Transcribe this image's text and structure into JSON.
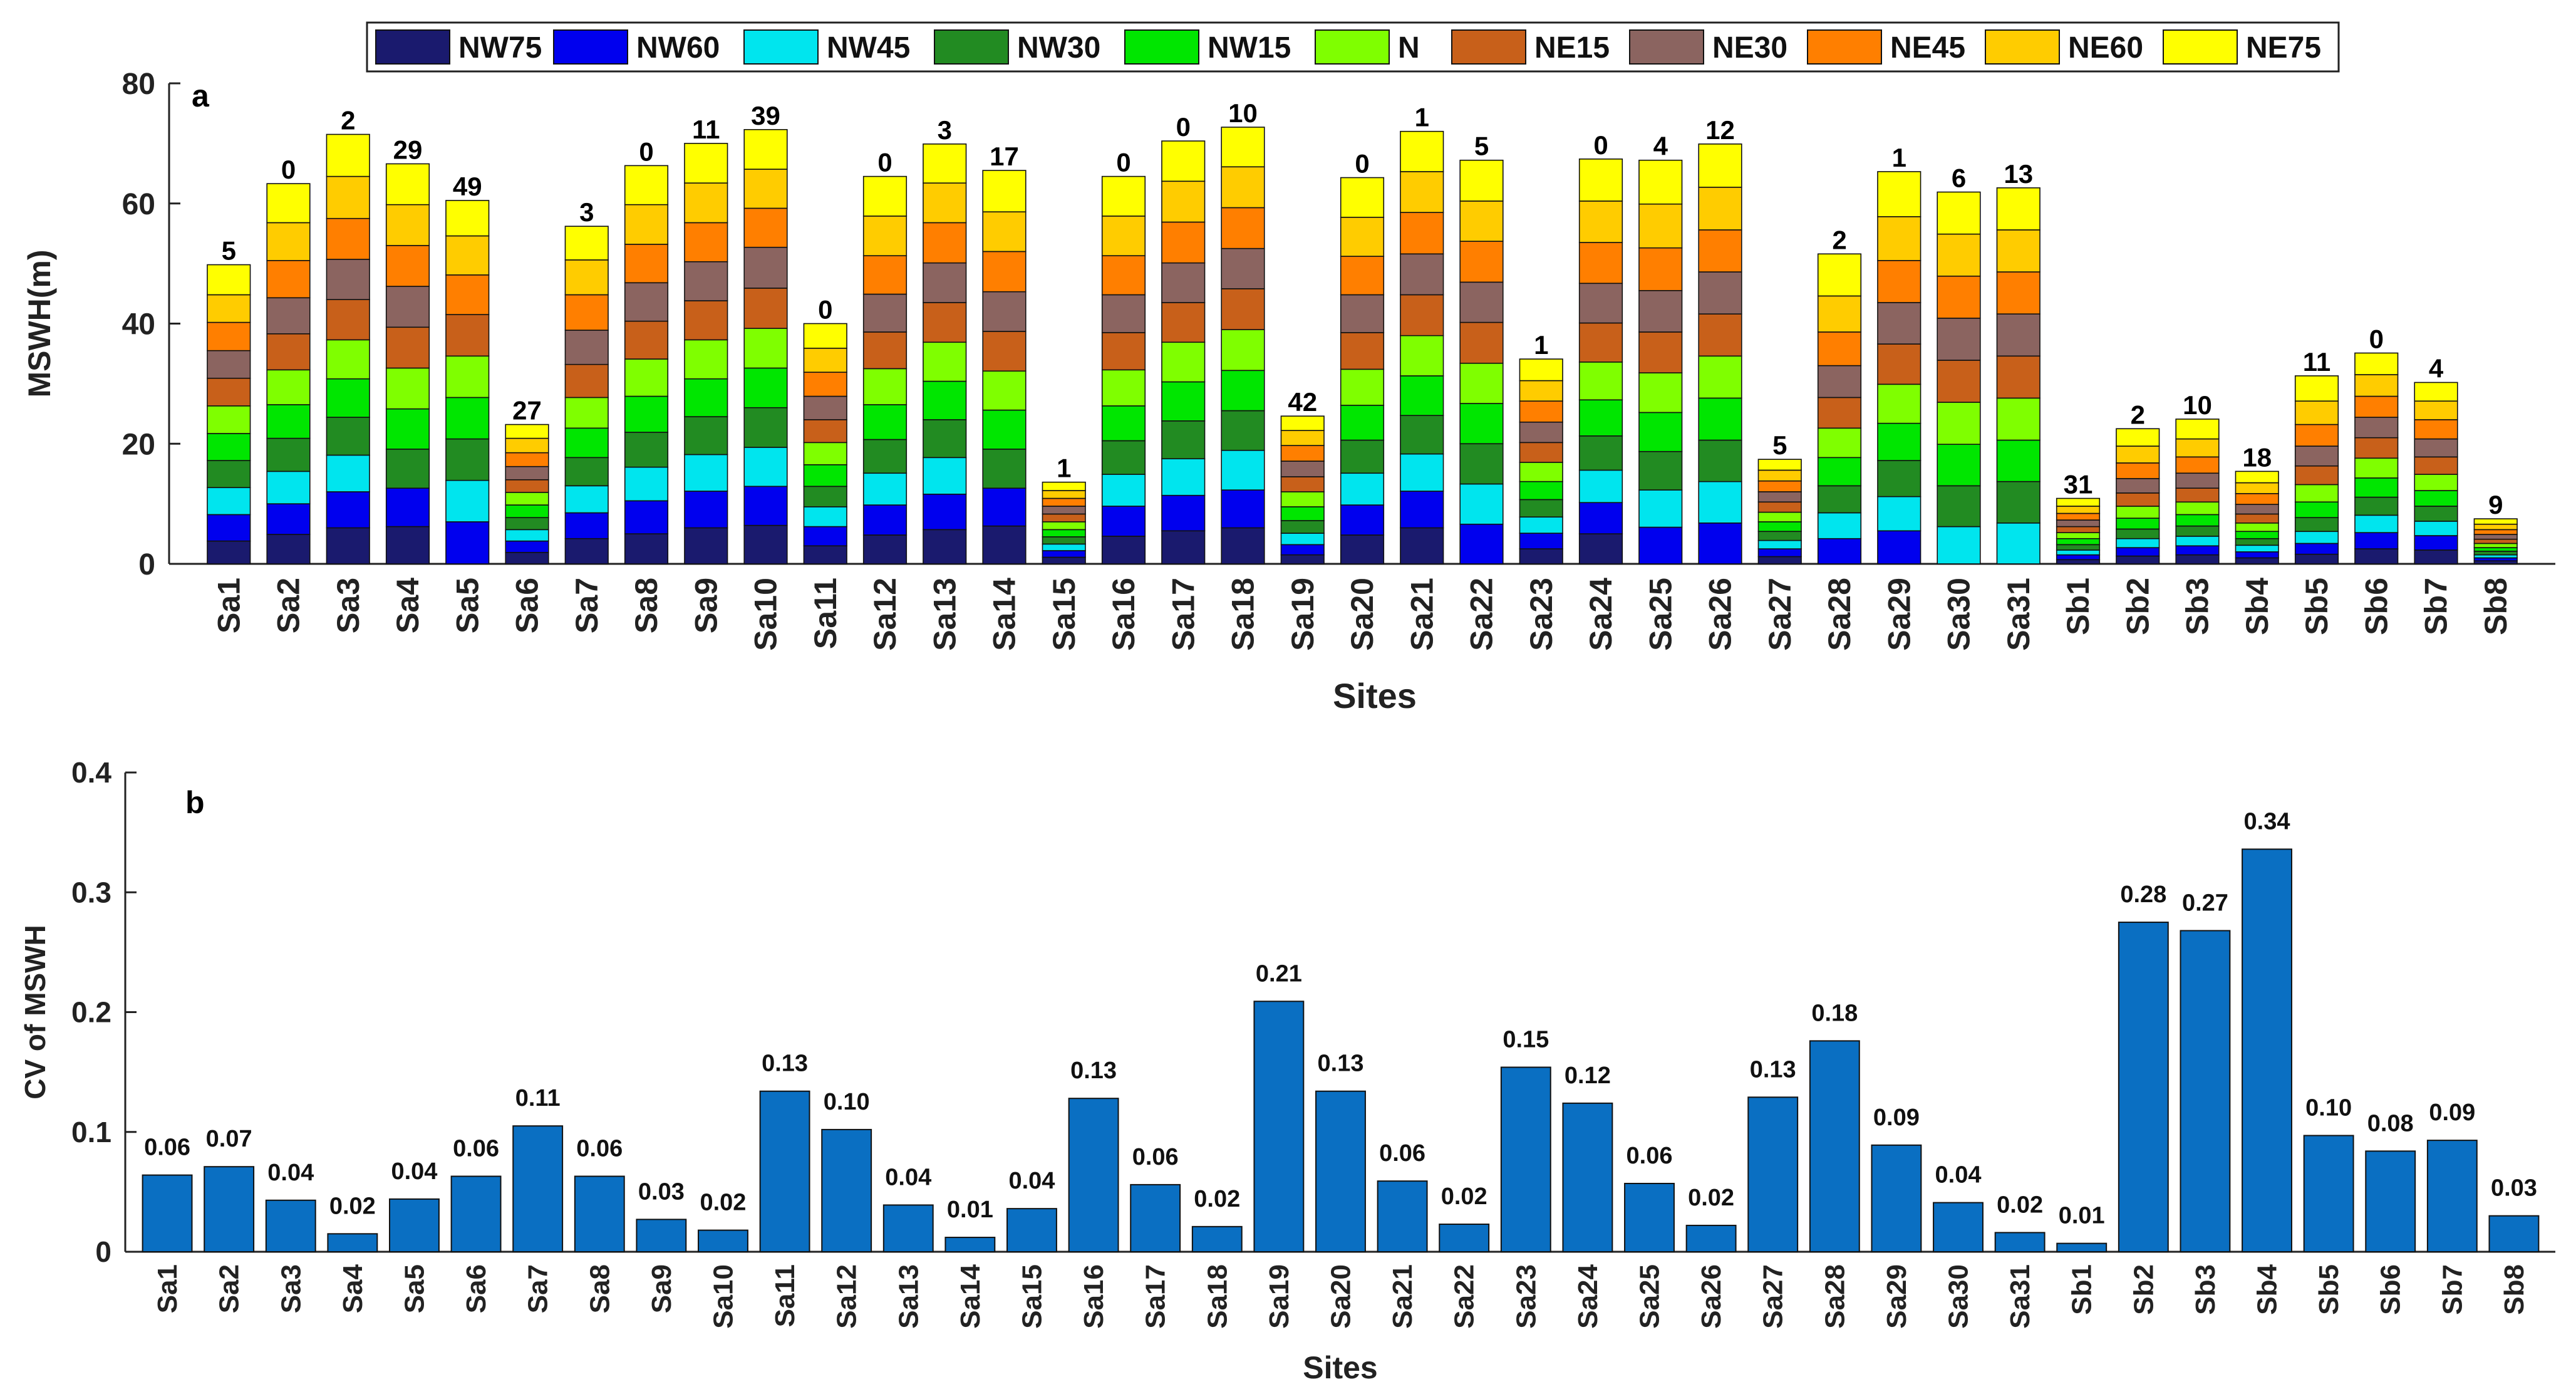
{
  "chart_data": [
    {
      "panel": "a",
      "type": "bar",
      "stacked": true,
      "panel_label": "a",
      "title": "",
      "xlabel": "Sites",
      "ylabel": "MSWH(m)",
      "ylim": [
        0,
        80
      ],
      "yticks": [
        0,
        20,
        40,
        60,
        80
      ],
      "legend_position": "top-center",
      "categories": [
        "Sa1",
        "Sa2",
        "Sa3",
        "Sa4",
        "Sa5",
        "Sa6",
        "Sa7",
        "Sa8",
        "Sa9",
        "Sa10",
        "Sa11",
        "Sa12",
        "Sa13",
        "Sa14",
        "Sa15",
        "Sa16",
        "Sa17",
        "Sa18",
        "Sa19",
        "Sa20",
        "Sa21",
        "Sa22",
        "Sa23",
        "Sa24",
        "Sa25",
        "Sa26",
        "Sa27",
        "Sa28",
        "Sa29",
        "Sa30",
        "Sa31",
        "Sb1",
        "Sb2",
        "Sb3",
        "Sb4",
        "Sb5",
        "Sb6",
        "Sb7",
        "Sb8"
      ],
      "series": [
        {
          "name": "NW75",
          "color": "#1a1a6e"
        },
        {
          "name": "NW60",
          "color": "#0000ee"
        },
        {
          "name": "NW45",
          "color": "#00e5ee"
        },
        {
          "name": "NW30",
          "color": "#228b22"
        },
        {
          "name": "NW15",
          "color": "#00e600"
        },
        {
          "name": "N",
          "color": "#7fff00"
        },
        {
          "name": "NE15",
          "color": "#c8601a"
        },
        {
          "name": "NE30",
          "color": "#8b6460"
        },
        {
          "name": "NE45",
          "color": "#ff7f00"
        },
        {
          "name": "NE60",
          "color": "#ffcc00"
        },
        {
          "name": "NE75",
          "color": "#ffff00"
        }
      ],
      "series_names": [
        "NW75",
        "NW60",
        "NW45",
        "NW30",
        "NW15",
        "N",
        "NE15",
        "NE30",
        "NE45",
        "NE60",
        "NE75"
      ],
      "stacks": [
        [
          3.8,
          4.4,
          4.5,
          4.5,
          4.5,
          4.6,
          4.6,
          4.6,
          4.7,
          4.6,
          5.0
        ],
        [
          4.9,
          5.1,
          5.4,
          5.5,
          5.6,
          5.8,
          6.0,
          6.0,
          6.2,
          6.3,
          6.5
        ],
        [
          6.0,
          6.0,
          6.1,
          6.3,
          6.4,
          6.5,
          6.7,
          6.7,
          6.8,
          7.0,
          7.0
        ],
        [
          6.2,
          6.4,
          0,
          6.5,
          6.7,
          6.8,
          6.8,
          6.8,
          6.8,
          6.8,
          6.8
        ],
        [
          0,
          7.0,
          6.9,
          6.9,
          6.9,
          6.9,
          6.9,
          0,
          6.6,
          6.5,
          5.9
        ],
        [
          1.9,
          1.9,
          1.9,
          2.0,
          2.1,
          2.1,
          2.1,
          2.2,
          2.3,
          2.4,
          2.3
        ],
        [
          4.2,
          4.3,
          4.5,
          4.7,
          4.9,
          5.1,
          5.5,
          5.7,
          5.9,
          5.8,
          5.6
        ],
        [
          5.0,
          5.5,
          5.6,
          5.8,
          6.0,
          6.2,
          6.3,
          6.4,
          6.4,
          6.6,
          6.5
        ],
        [
          6.0,
          6.1,
          6.1,
          6.3,
          6.3,
          6.5,
          6.5,
          6.5,
          6.5,
          6.6,
          6.6
        ],
        [
          6.4,
          6.5,
          6.5,
          6.6,
          6.6,
          6.6,
          6.7,
          6.8,
          6.5,
          6.5,
          6.6
        ],
        [
          3.0,
          3.2,
          3.3,
          3.4,
          3.6,
          3.7,
          3.8,
          3.9,
          4.0,
          4.0,
          4.1
        ],
        [
          4.8,
          5.0,
          5.3,
          5.6,
          5.8,
          6.0,
          6.1,
          6.3,
          6.4,
          6.6,
          6.6
        ],
        [
          5.7,
          5.9,
          6.1,
          6.3,
          6.4,
          6.5,
          6.6,
          6.6,
          6.7,
          6.6,
          6.5
        ],
        [
          6.3,
          6.3,
          0,
          6.5,
          6.5,
          6.5,
          6.6,
          6.6,
          6.7,
          6.6,
          6.9
        ],
        [
          1.1,
          1.1,
          1.1,
          1.2,
          1.2,
          1.3,
          1.3,
          1.3,
          1.3,
          1.3,
          1.4
        ],
        [
          4.6,
          5.0,
          5.3,
          5.6,
          5.8,
          6.0,
          6.2,
          6.3,
          6.5,
          6.6,
          6.6
        ],
        [
          5.5,
          5.9,
          6.1,
          6.3,
          6.5,
          6.6,
          6.6,
          6.6,
          6.8,
          6.8,
          6.7
        ],
        [
          6.0,
          6.3,
          6.6,
          6.6,
          6.7,
          6.8,
          6.8,
          6.7,
          6.8,
          6.8,
          6.6
        ],
        [
          1.5,
          1.7,
          1.9,
          2.1,
          2.3,
          2.5,
          2.5,
          2.6,
          2.6,
          2.5,
          2.4
        ],
        [
          4.8,
          5.0,
          5.3,
          5.5,
          5.8,
          6.0,
          6.1,
          6.3,
          6.4,
          6.5,
          6.6
        ],
        [
          6.0,
          6.1,
          6.2,
          6.4,
          6.6,
          6.7,
          6.8,
          6.8,
          6.9,
          6.8,
          6.7
        ],
        [
          0,
          6.6,
          6.7,
          6.7,
          6.7,
          6.7,
          6.8,
          6.7,
          6.8,
          6.7,
          6.8
        ],
        [
          2.5,
          2.6,
          2.7,
          2.9,
          3.0,
          3.2,
          3.3,
          3.4,
          3.5,
          3.4,
          3.6
        ],
        [
          5.0,
          5.2,
          5.4,
          5.7,
          6.0,
          6.3,
          6.5,
          6.6,
          6.8,
          6.9,
          7.0
        ],
        [
          0,
          6.1,
          6.2,
          6.4,
          6.5,
          6.6,
          6.8,
          6.9,
          7.1,
          7.3,
          7.3
        ],
        [
          0,
          6.8,
          6.9,
          6.9,
          7.0,
          7.0,
          7.0,
          7.0,
          7.0,
          7.1,
          7.2
        ],
        [
          1.2,
          1.3,
          1.4,
          1.5,
          1.6,
          1.6,
          1.7,
          1.7,
          1.8,
          1.8,
          1.8
        ],
        [
          0,
          4.2,
          4.3,
          4.5,
          4.7,
          4.9,
          5.1,
          5.3,
          5.6,
          6.0,
          7.0
        ],
        [
          0,
          5.5,
          5.7,
          6.0,
          6.2,
          6.5,
          6.7,
          6.9,
          7.0,
          7.3,
          7.5
        ],
        [
          0,
          0,
          6.2,
          6.8,
          6.9,
          7.0,
          7.0,
          7.0,
          7.0,
          7.0,
          7.0
        ],
        [
          0,
          0,
          6.8,
          6.9,
          6.9,
          7.0,
          7.0,
          7.0,
          7.0,
          7.0,
          7.0
        ],
        [
          0.7,
          0.8,
          0.8,
          0.9,
          1.0,
          1.0,
          1.0,
          1.1,
          1.1,
          1.2,
          1.3
        ],
        [
          1.3,
          1.4,
          1.5,
          1.6,
          1.8,
          2.0,
          2.2,
          2.4,
          2.6,
          2.8,
          2.9
        ],
        [
          1.5,
          1.5,
          1.6,
          1.7,
          1.9,
          2.1,
          2.3,
          2.5,
          2.7,
          3.0,
          3.3
        ],
        [
          1.0,
          1.0,
          1.1,
          1.1,
          1.2,
          1.4,
          1.5,
          1.6,
          1.8,
          1.8,
          1.9
        ],
        [
          1.6,
          1.8,
          2.0,
          2.3,
          2.6,
          2.9,
          3.1,
          3.3,
          3.6,
          3.9,
          4.2
        ],
        [
          2.5,
          2.7,
          2.9,
          3.0,
          3.2,
          3.3,
          3.4,
          3.4,
          3.5,
          3.6,
          3.6
        ],
        [
          2.3,
          2.4,
          2.4,
          2.5,
          2.6,
          2.7,
          2.9,
          3.0,
          3.2,
          3.1,
          3.1
        ],
        [
          0.5,
          0.5,
          0.5,
          0.6,
          0.6,
          0.7,
          0.7,
          0.8,
          0.8,
          0.9,
          0.9
        ]
      ],
      "top_labels": [
        "5",
        "0",
        "2",
        "29",
        "49",
        "27",
        "3",
        "0",
        "11",
        "39",
        "0",
        "0",
        "3",
        "17",
        "1",
        "0",
        "0",
        "10",
        "42",
        "0",
        "1",
        "5",
        "1",
        "0",
        "4",
        "12",
        "5",
        "2",
        "1",
        "6",
        "13",
        "31",
        "2",
        "10",
        "18",
        "11",
        "0",
        "4",
        "9"
      ]
    },
    {
      "panel": "b",
      "type": "bar",
      "panel_label": "b",
      "title": "",
      "xlabel": "Sites",
      "ylabel": "CV of MSWH",
      "ylim": [
        0,
        0.4
      ],
      "yticks": [
        0,
        0.1,
        0.2,
        0.3,
        0.4
      ],
      "ytick_labels": [
        "0",
        "0.1",
        "0.2",
        "0.3",
        "0.4"
      ],
      "bar_color": "#0a6fc2",
      "categories": [
        "Sa1",
        "Sa2",
        "Sa3",
        "Sa4",
        "Sa5",
        "Sa6",
        "Sa7",
        "Sa8",
        "Sa9",
        "Sa10",
        "Sa11",
        "Sa12",
        "Sa13",
        "Sa14",
        "Sa15",
        "Sa16",
        "Sa17",
        "Sa18",
        "Sa19",
        "Sa20",
        "Sa21",
        "Sa22",
        "Sa23",
        "Sa24",
        "Sa25",
        "Sa26",
        "Sa27",
        "Sa28",
        "Sa29",
        "Sa30",
        "Sa31",
        "Sb1",
        "Sb2",
        "Sb3",
        "Sb4",
        "Sb5",
        "Sb6",
        "Sb7",
        "Sb8"
      ],
      "values": [
        0.064,
        0.071,
        0.043,
        0.015,
        0.044,
        0.063,
        0.105,
        0.063,
        0.027,
        0.018,
        0.134,
        0.102,
        0.039,
        0.012,
        0.036,
        0.128,
        0.056,
        0.021,
        0.209,
        0.134,
        0.059,
        0.023,
        0.154,
        0.124,
        0.057,
        0.022,
        0.129,
        0.176,
        0.089,
        0.041,
        0.016,
        0.007,
        0.275,
        0.268,
        0.336,
        0.097,
        0.084,
        0.093,
        0.03
      ],
      "value_labels": [
        "0.06",
        "0.07",
        "0.04",
        "0.02",
        "0.04",
        "0.06",
        "0.11",
        "0.06",
        "0.03",
        "0.02",
        "0.13",
        "0.10",
        "0.04",
        "0.01",
        "0.04",
        "0.13",
        "0.06",
        "0.02",
        "0.21",
        "0.13",
        "0.06",
        "0.02",
        "0.15",
        "0.12",
        "0.06",
        "0.02",
        "0.13",
        "0.18",
        "0.09",
        "0.04",
        "0.02",
        "0.01",
        "0.28",
        "0.27",
        "0.34",
        "0.10",
        "0.08",
        "0.09",
        "0.03"
      ]
    }
  ]
}
